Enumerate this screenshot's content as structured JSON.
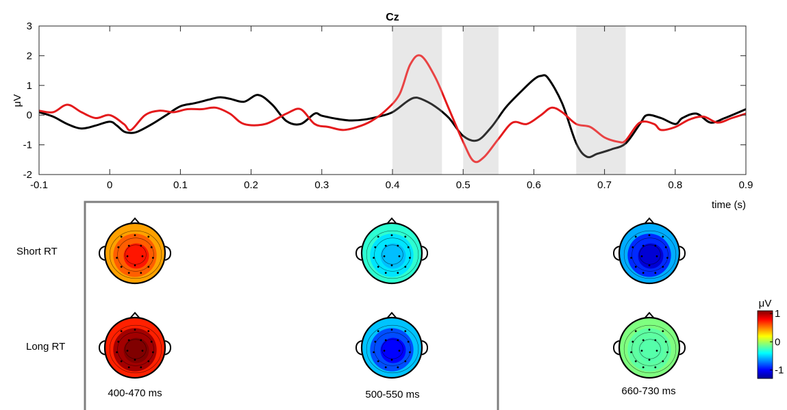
{
  "chart_data": {
    "type": "line",
    "title": "Cz",
    "xlabel": "time (s)",
    "ylabel": "μV",
    "xlim": [
      -0.1,
      0.9
    ],
    "ylim": [
      -2,
      3
    ],
    "xticks": [
      -0.1,
      0,
      0.1,
      0.2,
      0.3,
      0.4,
      0.5,
      0.6,
      0.7,
      0.8,
      0.9
    ],
    "xtick_labels": [
      "-0.1",
      "0",
      "0.1",
      "0.2",
      "0.3",
      "0.4",
      "0.5",
      "0.6",
      "0.7",
      "0.8",
      "0.9"
    ],
    "yticks": [
      -2,
      -1,
      0,
      1,
      2,
      3
    ],
    "ytick_labels": [
      "-2",
      "-1",
      "0",
      "1",
      "2",
      "3"
    ],
    "grid": false,
    "highlight_windows": [
      [
        0.4,
        0.47
      ],
      [
        0.5,
        0.55
      ],
      [
        0.66,
        0.73
      ]
    ],
    "series": [
      {
        "color": "#000000",
        "x": [
          -0.1,
          -0.08,
          -0.06,
          -0.04,
          -0.02,
          0.0,
          0.01,
          0.02,
          0.03,
          0.04,
          0.06,
          0.08,
          0.1,
          0.12,
          0.14,
          0.155,
          0.17,
          0.19,
          0.21,
          0.23,
          0.25,
          0.27,
          0.29,
          0.3,
          0.32,
          0.34,
          0.36,
          0.38,
          0.4,
          0.42,
          0.43,
          0.44,
          0.46,
          0.48,
          0.5,
          0.52,
          0.54,
          0.56,
          0.58,
          0.6,
          0.61,
          0.62,
          0.64,
          0.66,
          0.675,
          0.69,
          0.71,
          0.73,
          0.75,
          0.76,
          0.78,
          0.8,
          0.81,
          0.83,
          0.85,
          0.87,
          0.9
        ],
        "y": [
          0.1,
          -0.05,
          -0.3,
          -0.45,
          -0.35,
          -0.22,
          -0.35,
          -0.55,
          -0.6,
          -0.55,
          -0.3,
          0.0,
          0.3,
          0.4,
          0.52,
          0.6,
          0.55,
          0.45,
          0.68,
          0.35,
          -0.2,
          -0.3,
          0.05,
          -0.02,
          -0.12,
          -0.18,
          -0.15,
          -0.05,
          0.1,
          0.45,
          0.58,
          0.55,
          0.3,
          -0.1,
          -0.7,
          -0.85,
          -0.4,
          0.25,
          0.75,
          1.2,
          1.32,
          1.25,
          0.4,
          -0.95,
          -1.4,
          -1.3,
          -1.15,
          -0.95,
          -0.3,
          0.0,
          -0.1,
          -0.3,
          -0.1,
          0.05,
          -0.25,
          -0.1,
          0.2
        ]
      },
      {
        "color": "#e41a1c",
        "x": [
          -0.1,
          -0.08,
          -0.06,
          -0.04,
          -0.02,
          0.0,
          0.02,
          0.03,
          0.05,
          0.07,
          0.09,
          0.11,
          0.13,
          0.15,
          0.17,
          0.19,
          0.22,
          0.25,
          0.27,
          0.29,
          0.31,
          0.33,
          0.35,
          0.37,
          0.39,
          0.41,
          0.425,
          0.44,
          0.46,
          0.48,
          0.5,
          0.515,
          0.53,
          0.55,
          0.57,
          0.59,
          0.61,
          0.625,
          0.64,
          0.66,
          0.68,
          0.7,
          0.72,
          0.73,
          0.75,
          0.77,
          0.78,
          0.8,
          0.82,
          0.84,
          0.86,
          0.88,
          0.9
        ],
        "y": [
          0.15,
          0.1,
          0.35,
          0.1,
          -0.1,
          0.0,
          -0.3,
          -0.5,
          0.0,
          0.15,
          0.1,
          0.2,
          0.2,
          0.25,
          0.05,
          -0.3,
          -0.3,
          0.05,
          0.2,
          -0.3,
          -0.4,
          -0.5,
          -0.4,
          -0.2,
          0.15,
          0.7,
          1.7,
          2.0,
          1.3,
          0.2,
          -0.9,
          -1.55,
          -1.4,
          -0.8,
          -0.25,
          -0.3,
          0.0,
          0.25,
          0.1,
          -0.3,
          -0.4,
          -0.75,
          -0.9,
          -0.85,
          -0.25,
          -0.3,
          -0.5,
          -0.4,
          -0.15,
          -0.05,
          -0.25,
          -0.1,
          0.05
        ]
      }
    ],
    "topoplots": {
      "row_labels": [
        "Short RT",
        "Long RT"
      ],
      "row_label_colors": [
        "#000000",
        "#e41a1c"
      ],
      "window_labels": [
        "400-470 ms",
        "500-550 ms",
        "660-730 ms"
      ],
      "colorbar": {
        "label": "μV",
        "ticks": [
          1,
          0,
          -1
        ],
        "tick_labels": [
          "1",
          "0",
          "-1"
        ],
        "range": [
          -1.3,
          1.1
        ]
      },
      "values": [
        [
          0.75,
          -0.55,
          -1.1
        ],
        [
          1.3,
          -1.0,
          -0.2
        ]
      ]
    }
  }
}
